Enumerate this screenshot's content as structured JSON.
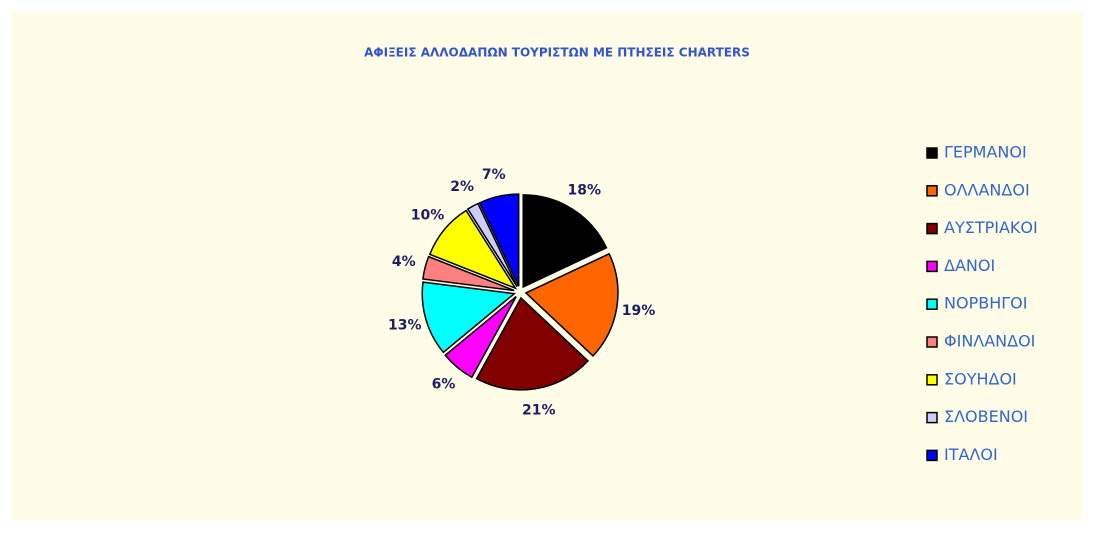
{
  "chart_data": {
    "type": "pie",
    "title": "ΑΦΙΞΕΙΣ ΑΛΛΟΔΑΠΩΝ ΤΟΥΡΙΣΤΩΝ ΜΕ ΠΤΗΣΕΙΣ CHARTERS",
    "categories": [
      "ΓΕΡΜΑΝΟΙ",
      "ΟΛΛΑΝΔΟΙ",
      "ΑΥΣΤΡΙΑΚΟΙ",
      "ΔΑΝΟΙ",
      "ΝΟΡΒΗΓΟΙ",
      "ΦΙΝΛΑΝΔΟΙ",
      "ΣΟΥΗΔΟΙ",
      "ΣΛΟΒΕΝΟΙ",
      "ΙΤΑΛΟΙ"
    ],
    "values": [
      18,
      19,
      21,
      6,
      13,
      4,
      10,
      2,
      7
    ],
    "value_labels": [
      "18%",
      "19%",
      "21%",
      "6%",
      "13%",
      "4%",
      "10%",
      "2%",
      "7%"
    ],
    "colors": [
      "#000000",
      "#ff6600",
      "#800000",
      "#ff00ff",
      "#00ffff",
      "#ff8080",
      "#ffff00",
      "#ccccff",
      "#0000ff"
    ],
    "legend": "right"
  }
}
